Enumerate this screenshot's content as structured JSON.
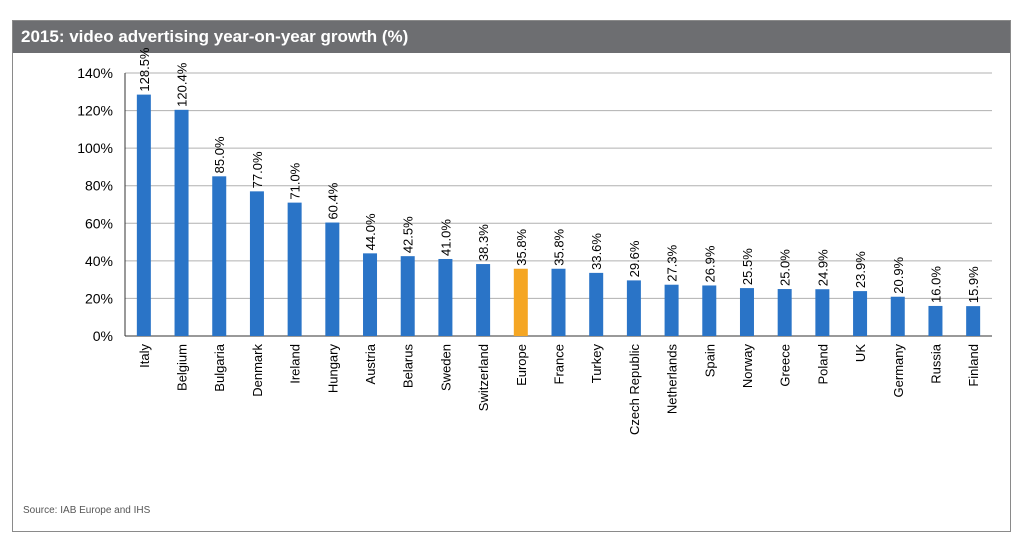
{
  "chart_data": {
    "type": "bar",
    "title": "2015: video advertising year-on-year growth (%)",
    "source": "Source: IAB Europe and IHS",
    "xlabel": "",
    "ylabel": "",
    "ylim": [
      0,
      140
    ],
    "yticks": [
      {
        "value": 0,
        "label": "0%"
      },
      {
        "value": 20,
        "label": "20%"
      },
      {
        "value": 40,
        "label": "40%"
      },
      {
        "value": 60,
        "label": "60%"
      },
      {
        "value": 80,
        "label": "80%"
      },
      {
        "value": 100,
        "label": "100%"
      },
      {
        "value": 120,
        "label": "120%"
      },
      {
        "value": 140,
        "label": "140%"
      }
    ],
    "grid": true,
    "categories": [
      "Italy",
      "Belgium",
      "Bulgaria",
      "Denmark",
      "Ireland",
      "Hungary",
      "Austria",
      "Belarus",
      "Sweden",
      "Switzerland",
      "Europe",
      "France",
      "Turkey",
      "Czech Republic",
      "Netherlands",
      "Spain",
      "Norway",
      "Greece",
      "Poland",
      "UK",
      "Germany",
      "Russia",
      "Finland"
    ],
    "values": [
      128.5,
      120.4,
      85.0,
      77.0,
      71.0,
      60.4,
      44.0,
      42.5,
      41.0,
      38.3,
      35.8,
      35.8,
      33.6,
      29.6,
      27.3,
      26.9,
      25.5,
      25.0,
      24.9,
      23.9,
      20.9,
      16.0,
      15.9
    ],
    "value_labels": [
      "128.5%",
      "120.4%",
      "85.0%",
      "77.0%",
      "71.0%",
      "60.4%",
      "44.0%",
      "42.5%",
      "41.0%",
      "38.3%",
      "35.8%",
      "35.8%",
      "33.6%",
      "29.6%",
      "27.3%",
      "26.9%",
      "25.5%",
      "25.0%",
      "24.9%",
      "23.9%",
      "20.9%",
      "16.0%",
      "15.9%"
    ],
    "highlight": "Europe",
    "colors": {
      "bar": "#2a74c7",
      "highlight": "#f5a623",
      "grid": "#b0b0b0",
      "axis": "#333333",
      "title_bg": "#6d6e71"
    }
  }
}
